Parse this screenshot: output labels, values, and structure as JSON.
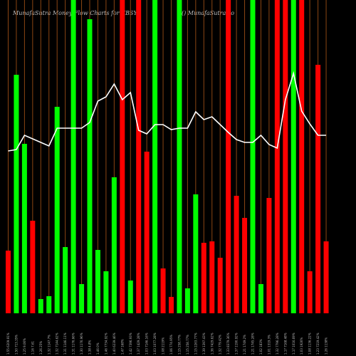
{
  "header": {
    "title_left": "MunafaSutra  Money Flow  Charts for KBSY",
    "title_right": "() MunafaSutra.co"
  },
  "colors": {
    "up": "#00ff00",
    "down": "#ff0000",
    "grid": "#8b4513",
    "line": "#ffffff",
    "background": "#000000"
  },
  "chart_data": {
    "type": "bar",
    "bars": [
      {
        "label": "1.55 6209.91%",
        "color": "red",
        "value": 88
      },
      {
        "label": "1.50 713.35%",
        "color": "green",
        "value": 335
      },
      {
        "label": "1.25 9.06%",
        "color": "green",
        "value": 238
      },
      {
        "label": "1.16  7.61",
        "color": "red",
        "value": 130
      },
      {
        "label": "1.26 25%",
        "color": "green",
        "value": 20
      },
      {
        "label": "1.32 1147.7%",
        "color": "green",
        "value": 24
      },
      {
        "label": "1.32 7144.62%",
        "color": "green",
        "value": 290
      },
      {
        "label": "1.31 1146.11%",
        "color": "green",
        "value": 93
      },
      {
        "label": "1.31 1176.66%",
        "color": "green",
        "value": 440
      },
      {
        "label": "1.30 1176.96%",
        "color": "green",
        "value": 41
      },
      {
        "label": "1.38 4.8%",
        "color": "green",
        "value": 413
      },
      {
        "label": "1.46  0%",
        "color": "green",
        "value": 89
      },
      {
        "label": "1.46 7734.92%",
        "color": "green",
        "value": 59
      },
      {
        "label": "1.40 6239.46%",
        "color": "green",
        "value": 191
      },
      {
        "label": "1.47 168%",
        "color": "red",
        "value": 440
      },
      {
        "label": "1.42 7396.93%",
        "color": "green",
        "value": 46
      },
      {
        "label": "1.37 1429.28%",
        "color": "red",
        "value": 440
      },
      {
        "label": "1.03 7146.16%",
        "color": "red",
        "value": 227
      },
      {
        "label": "1.03 1077.28%",
        "color": "green",
        "value": 440
      },
      {
        "label": "1.08 2119%",
        "color": "red",
        "value": 63
      },
      {
        "label": "1.06 774.95%",
        "color": "red",
        "value": 23
      },
      {
        "label": "1.15 258.77%",
        "color": "green",
        "value": 440
      },
      {
        "label": "1.15 258.77%",
        "color": "green",
        "value": 35
      },
      {
        "label": "1.15 2263.77%",
        "color": "green",
        "value": 167
      },
      {
        "label": "1.39 1397.43%",
        "color": "red",
        "value": 99
      },
      {
        "label": "1.36 7429.62%",
        "color": "red",
        "value": 101
      },
      {
        "label": "1.32 779.42%",
        "color": "red",
        "value": 78
      },
      {
        "label": "1.33 8379.36%",
        "color": "red",
        "value": 440
      },
      {
        "label": "1.37 1190.92%",
        "color": "red",
        "value": 165
      },
      {
        "label": "1.21 1749.2%",
        "color": "red",
        "value": 134
      },
      {
        "label": "1.21 1745.28%",
        "color": "green",
        "value": 440
      },
      {
        "label": "1.02 183%",
        "color": "green",
        "value": 41
      },
      {
        "label": "1.01 1319.3%",
        "color": "red",
        "value": 162
      },
      {
        "label": "1.32 7796.28%",
        "color": "red",
        "value": 440
      },
      {
        "label": "1.17 7168.48%",
        "color": "red",
        "value": 440
      },
      {
        "label": "1.17 1016.69%",
        "color": "green",
        "value": 440
      },
      {
        "label": "1.03 1926%",
        "color": "red",
        "value": 440
      },
      {
        "label": "1.08 1136.22%",
        "color": "red",
        "value": 59
      },
      {
        "label": "1.23 7219.42%",
        "color": "red",
        "value": 349
      },
      {
        "label": "1.26 1138%",
        "color": "red",
        "value": 101
      }
    ],
    "price_line": [
      212,
      210,
      190,
      195,
      200,
      205,
      180,
      180,
      180,
      180,
      172,
      142,
      136,
      118,
      140,
      130,
      183,
      188,
      175,
      175,
      182,
      180,
      180,
      157,
      168,
      164,
      175,
      186,
      196,
      200,
      200,
      190,
      203,
      208,
      140,
      103,
      156,
      174,
      190,
      190
    ],
    "ylim": [
      0,
      440
    ]
  }
}
